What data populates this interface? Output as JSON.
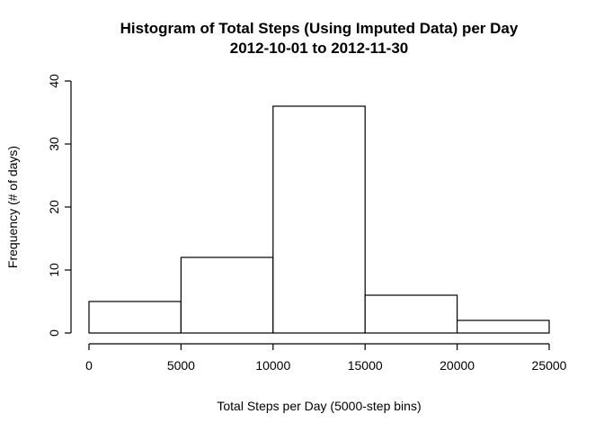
{
  "chart_data": {
    "type": "bar",
    "title": "Histogram of Total Steps (Using Imputed Data) per Day",
    "subtitle": "2012-10-01 to 2012-11-30",
    "xlabel": "Total Steps per Day (5000-step bins)",
    "ylabel": "Frequency (# of days)",
    "bins": [
      {
        "from": 0,
        "to": 5000,
        "count": 5
      },
      {
        "from": 5000,
        "to": 10000,
        "count": 12
      },
      {
        "from": 10000,
        "to": 15000,
        "count": 36
      },
      {
        "from": 15000,
        "to": 20000,
        "count": 6
      },
      {
        "from": 20000,
        "to": 25000,
        "count": 2
      }
    ],
    "xlim": [
      0,
      25000
    ],
    "ylim": [
      0,
      40
    ],
    "x_ticks": [
      0,
      5000,
      10000,
      15000,
      20000,
      25000
    ],
    "x_tick_labels": [
      "0",
      "5000",
      "10000",
      "15000",
      "20000",
      "25000"
    ],
    "y_ticks": [
      0,
      10,
      20,
      30,
      40
    ],
    "y_tick_labels": [
      "0",
      "10",
      "20",
      "30",
      "40"
    ],
    "bar_fill": "#ffffff",
    "bar_stroke": "#000000",
    "grid": false
  }
}
